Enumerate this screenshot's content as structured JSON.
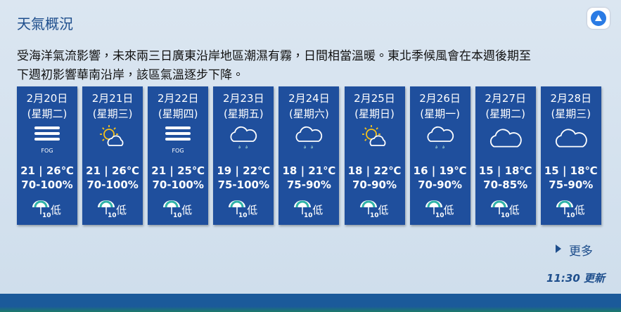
{
  "header": {
    "title": "天氣概況"
  },
  "summary": [
    "受海洋氣流影響，未來兩三日廣東沿岸地區潮濕有霧，日間相當溫暖。東北季候風會在本週後期至",
    "下週初影響華南沿岸，該區氣溫逐步下降。"
  ],
  "days": [
    {
      "date": "2月20日",
      "weekday": "(星期二)",
      "icon": "fog",
      "icon_label": "FOG",
      "temp": "21 | 26℃",
      "humidity": "70-100%",
      "psr_icon_label": "10",
      "psr": "低"
    },
    {
      "date": "2月21日",
      "weekday": "(星期三)",
      "icon": "sun-cloud",
      "temp": "21 | 26℃",
      "humidity": "70-100%",
      "psr_icon_label": "10",
      "psr": "低"
    },
    {
      "date": "2月22日",
      "weekday": "(星期四)",
      "icon": "fog",
      "icon_label": "FOG",
      "temp": "21 | 25℃",
      "humidity": "70-100%",
      "psr_icon_label": "10",
      "psr": "低"
    },
    {
      "date": "2月23日",
      "weekday": "(星期五)",
      "icon": "cloud-rain",
      "temp": "19 | 22℃",
      "humidity": "75-100%",
      "psr_icon_label": "10",
      "psr": "低"
    },
    {
      "date": "2月24日",
      "weekday": "(星期六)",
      "icon": "cloud-rain",
      "temp": "18 | 21℃",
      "humidity": "75-90%",
      "psr_icon_label": "10",
      "psr": "低"
    },
    {
      "date": "2月25日",
      "weekday": "(星期日)",
      "icon": "sun-cloud",
      "temp": "18 | 22℃",
      "humidity": "70-90%",
      "psr_icon_label": "10",
      "psr": "低"
    },
    {
      "date": "2月26日",
      "weekday": "(星期一)",
      "icon": "cloud-rain",
      "temp": "16 | 19℃",
      "humidity": "70-90%",
      "psr_icon_label": "10",
      "psr": "低"
    },
    {
      "date": "2月27日",
      "weekday": "(星期二)",
      "icon": "cloud",
      "temp": "15 | 18℃",
      "humidity": "70-85%",
      "psr_icon_label": "10",
      "psr": "低"
    },
    {
      "date": "2月28日",
      "weekday": "(星期三)",
      "icon": "cloud",
      "temp": "15 | 18℃",
      "humidity": "75-90%",
      "psr_icon_label": "10",
      "psr": "低"
    }
  ],
  "footer": {
    "more": "更多",
    "updated": "11:30 更新"
  }
}
